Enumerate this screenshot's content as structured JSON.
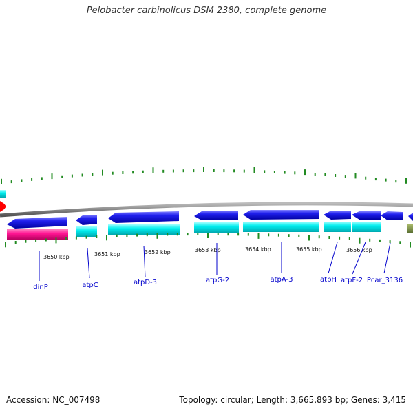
{
  "title": "Pelobacter carbinolicus DSM 2380, complete genome",
  "footer": {
    "accession_label": "Accession:",
    "accession_value": "NC_007498",
    "topology_label": "Topology:",
    "topology_value": "circular",
    "length_label": "Length:",
    "length_value": "3,665,893 bp",
    "genes_label": "Genes:",
    "genes_value": "3,415"
  },
  "colors": {
    "backbone": "#8a8a8a",
    "tick": "#228B22",
    "forward_gene": "#1a1ae6",
    "cds_cyan": "#00e5ee",
    "cds_pink": "#ff1493",
    "label_blue": "#0000cc",
    "offscreen_red": "#ff0000",
    "offscreen_olive": "#6b8e23"
  },
  "kbp_labels": [
    "3650 kbp",
    "3651 kbp",
    "3652 kbp",
    "3653 kbp",
    "3654 kbp",
    "3655 kbp",
    "3656 kbp"
  ],
  "gene_labels": [
    {
      "name": "dinP"
    },
    {
      "name": "atpC"
    },
    {
      "name": "atpD-3"
    },
    {
      "name": "atpG-2"
    },
    {
      "name": "atpA-3"
    },
    {
      "name": "atpH"
    },
    {
      "name": "atpF-2"
    },
    {
      "name": "Pcar_3136"
    }
  ]
}
